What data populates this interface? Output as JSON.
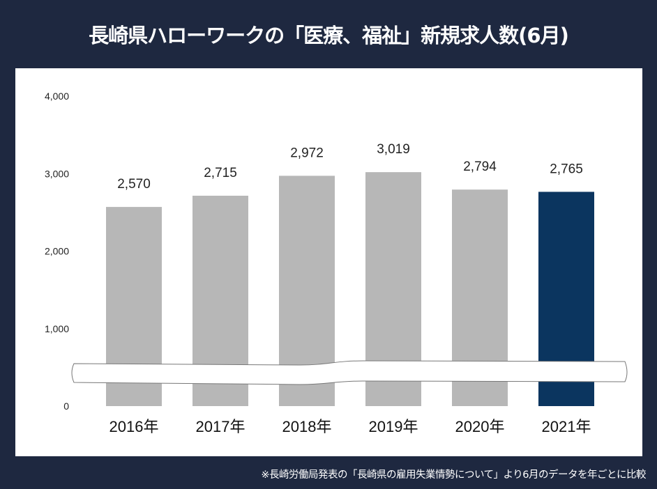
{
  "title": "長崎県ハローワークの「医療、福祉」新規求人数(6月)",
  "footnote": "※長崎労働局発表の「長崎県の雇用失業情勢について」より6月のデータを年ごとに比較",
  "colors": {
    "background": "#1e2840",
    "bar": "#b7b7b7",
    "highlight_bar": "#0b355f"
  },
  "chart_data": {
    "type": "bar",
    "title": "長崎県ハローワークの「医療、福祉」新規求人数(6月)",
    "categories": [
      "2016年",
      "2017年",
      "2018年",
      "2019年",
      "2020年",
      "2021年"
    ],
    "values": [
      2570,
      2715,
      2972,
      3019,
      2794,
      2765
    ],
    "data_labels": [
      "2,570",
      "2,715",
      "2,972",
      "3,019",
      "2,794",
      "2,765"
    ],
    "highlight_index": 5,
    "ylim": [
      0,
      4000
    ],
    "yticks": [
      0,
      1000,
      2000,
      3000,
      4000
    ],
    "ytick_labels": [
      "0",
      "1,000",
      "2,000",
      "3,000",
      "4,000"
    ],
    "axis_break": true,
    "grid": false,
    "xlabel": "",
    "ylabel": ""
  }
}
